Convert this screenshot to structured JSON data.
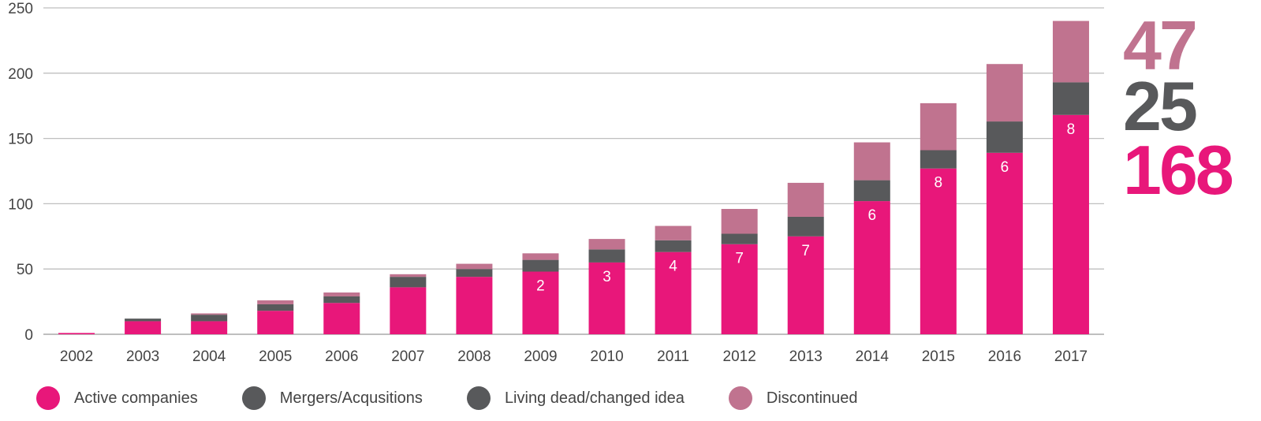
{
  "chart_data": {
    "type": "bar",
    "stacked": true,
    "categories": [
      "2002",
      "2003",
      "2004",
      "2005",
      "2006",
      "2007",
      "2008",
      "2009",
      "2010",
      "2011",
      "2012",
      "2013",
      "2014",
      "2015",
      "2016",
      "2017"
    ],
    "ylim": [
      0,
      250
    ],
    "yticks": [
      0,
      50,
      100,
      150,
      200,
      250
    ],
    "grid": true,
    "series": [
      {
        "name": "Active companies",
        "color": "#e8177a",
        "values": [
          1,
          10,
          10,
          18,
          24,
          36,
          44,
          48,
          55,
          63,
          69,
          75,
          102,
          127,
          139,
          168
        ]
      },
      {
        "name": "Mergers/Acqusitions",
        "color": "#58595b",
        "values": [
          0,
          2,
          5,
          5,
          5,
          8,
          6,
          9,
          10,
          9,
          8,
          15,
          16,
          14,
          24,
          25
        ]
      },
      {
        "name": "Living dead/changed idea",
        "color": "#58595b",
        "values": [
          0,
          0,
          0,
          0,
          0,
          0,
          0,
          0,
          0,
          0,
          0,
          0,
          0,
          0,
          0,
          0
        ]
      },
      {
        "name": "Discontinued",
        "color": "#c0738f",
        "values": [
          0,
          0,
          1,
          3,
          3,
          2,
          4,
          5,
          8,
          11,
          19,
          26,
          29,
          36,
          44,
          47
        ]
      }
    ],
    "bar_labels": [
      "",
      "",
      "",
      "",
      "",
      "",
      "",
      "2",
      "3",
      "4",
      "7",
      "7",
      "6",
      "8",
      "6",
      "8"
    ],
    "highlight": [
      {
        "value": "47",
        "color": "#c0738f"
      },
      {
        "value": "25",
        "color": "#58595b"
      },
      {
        "value": "168",
        "color": "#e8177a"
      }
    ]
  }
}
